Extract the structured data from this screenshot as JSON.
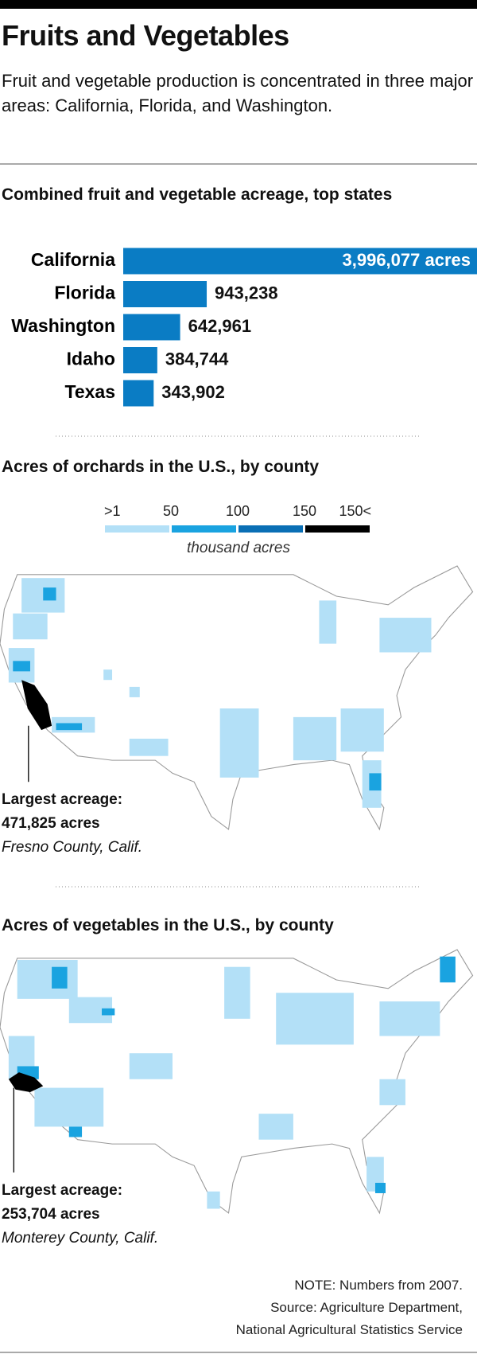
{
  "header": {
    "title": "Fruits and Vegetables",
    "subtitle": "Fruit and vegetable production is concentrated in three major areas: California, Florida, and Washington."
  },
  "chart_data": {
    "type": "bar",
    "orientation": "horizontal",
    "title": "Combined fruit and vegetable acreage, top states",
    "categories": [
      "California",
      "Florida",
      "Washington",
      "Idaho",
      "Texas"
    ],
    "values": [
      3996077,
      943238,
      642961,
      384744,
      343902
    ],
    "value_labels": [
      "3,996,077 acres",
      "943,238",
      "642,961",
      "384,744",
      "343,902"
    ],
    "color": "#0a7cc4"
  },
  "maps": [
    {
      "title": "Acres of orchards in the U.S., by county",
      "legend": {
        "labels": [
          ">1",
          "50",
          "100",
          "150",
          "150<"
        ],
        "colors": [
          "#b3e0f7",
          "#1aa3e0",
          "#0a6fb5",
          "#000000"
        ],
        "unit": "thousand acres"
      },
      "annotation": {
        "label": "Largest acreage:",
        "value": "471,825 acres",
        "place": "Fresno County, Calif."
      }
    },
    {
      "title": "Acres of vegetables in the U.S., by county",
      "annotation": {
        "label": "Largest acreage:",
        "value": "253,704 acres",
        "place": "Monterey County, Calif."
      }
    }
  ],
  "footer": {
    "note": "NOTE: Numbers from 2007.",
    "source": [
      "Source: Agriculture Department,",
      "National Agricultural Statistics Service"
    ]
  }
}
